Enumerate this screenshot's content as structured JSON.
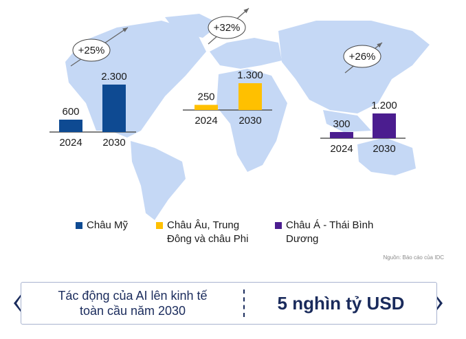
{
  "chart_data": {
    "type": "bar",
    "groups": [
      {
        "name": "Châu Mỹ",
        "color": "#0e4a92",
        "categories": [
          "2024",
          "2030"
        ],
        "values": [
          600,
          2300
        ],
        "value_labels": [
          "600",
          "2.300"
        ],
        "growth": "+25%"
      },
      {
        "name": "Châu Âu, Trung Đông và châu Phi",
        "color": "#ffc000",
        "categories": [
          "2024",
          "2030"
        ],
        "values": [
          250,
          1300
        ],
        "value_labels": [
          "250",
          "1.300"
        ],
        "growth": "+32%"
      },
      {
        "name": "Châu Á - Thái Bình Dương",
        "color": "#4b1d8f",
        "categories": [
          "2024",
          "2030"
        ],
        "values": [
          300,
          1200
        ],
        "value_labels": [
          "300",
          "1.200"
        ],
        "growth": "+26%"
      }
    ]
  },
  "legend": {
    "items": [
      {
        "line1": "Châu Mỹ",
        "line2": ""
      },
      {
        "line1": "Châu Âu, Trung",
        "line2": "Đông và châu Phi"
      },
      {
        "line1": "Châu Á - Thái Bình",
        "line2": "Dương"
      }
    ]
  },
  "source": "Nguồn: Báo cáo của IDC",
  "banner": {
    "left_line1": "Tác động của AI lên kinh tế",
    "left_line2": "toàn cầu năm 2030",
    "right": "5 nghìn tỷ USD"
  },
  "colors": {
    "map": "#c5d8f5",
    "banner_text": "#1a2b5c",
    "arrow": "#666666"
  }
}
